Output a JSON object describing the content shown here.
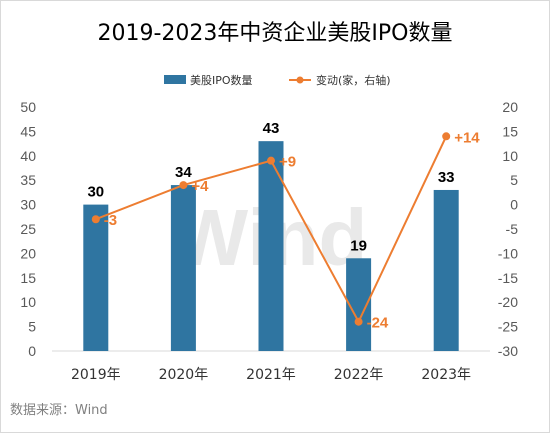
{
  "chart_data": {
    "type": "bar",
    "title": "2019-2023年中资企业美股IPO数量",
    "categories": [
      "2019年",
      "2020年",
      "2021年",
      "2022年",
      "2023年"
    ],
    "series": [
      {
        "name": "美股IPO数量",
        "type": "bar",
        "axis": "left",
        "color": "#2f75a1",
        "values": [
          30,
          34,
          43,
          19,
          33
        ],
        "labels": [
          "30",
          "34",
          "43",
          "19",
          "33"
        ]
      },
      {
        "name": "变动(家，右轴)",
        "type": "line",
        "axis": "right",
        "color": "#ed7d31",
        "values": [
          -3,
          4,
          9,
          -24,
          14
        ],
        "labels": [
          "-3",
          "+4",
          "+9",
          "-24",
          "+14"
        ]
      }
    ],
    "ylim": [
      0,
      50
    ],
    "y_ticks": [
      "0",
      "5",
      "10",
      "15",
      "20",
      "25",
      "30",
      "35",
      "40",
      "45",
      "50"
    ],
    "y2lim": [
      -30,
      20
    ],
    "y2_ticks": [
      "-30",
      "-25",
      "-20",
      "-15",
      "-10",
      "-5",
      "0",
      "5",
      "10",
      "15",
      "20"
    ],
    "grid": false,
    "legend_position": "top-center",
    "source": "数据来源：Wind",
    "watermark": "Wind"
  }
}
